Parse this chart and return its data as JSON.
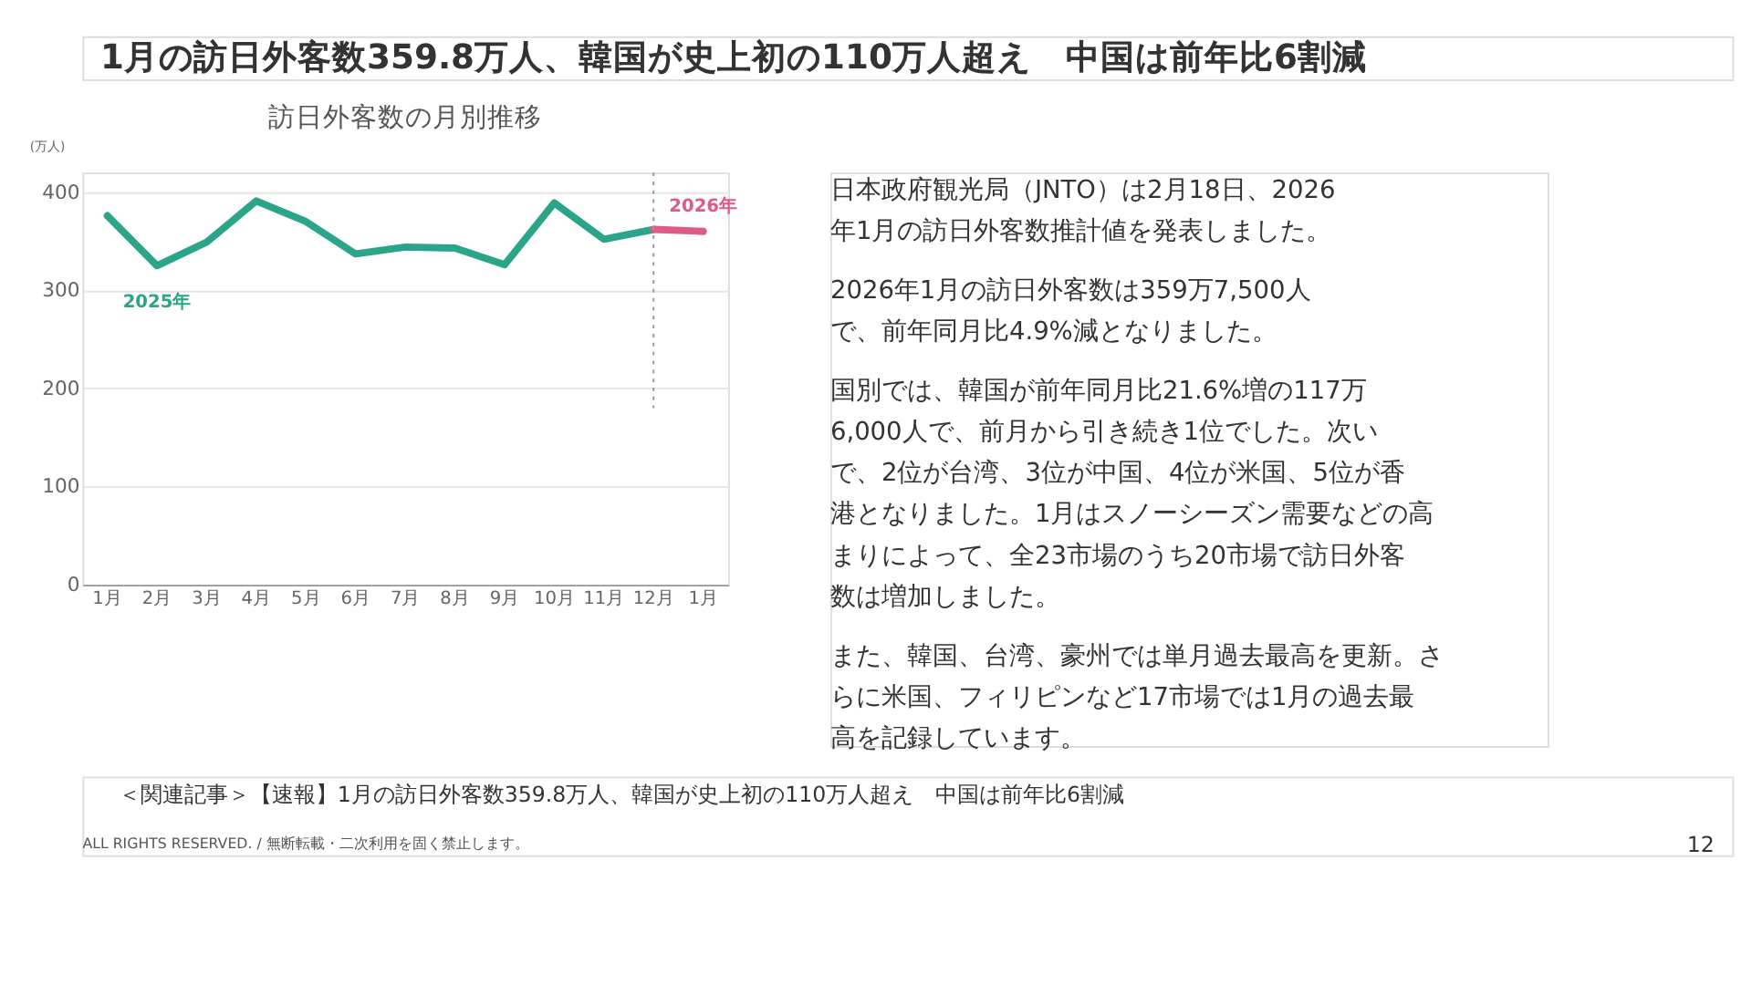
{
  "chart_data": [
    {
      "type": "line",
      "title": "訪日外客数の月別推移",
      "ylabel": "(万人)",
      "categories": [
        "1月",
        "2月",
        "3月",
        "4月",
        "5月",
        "6月",
        "7月",
        "8月",
        "9月",
        "10月",
        "11月",
        "12月",
        "1月"
      ],
      "series": [
        {
          "name": "2025年",
          "color": "#2aa58a",
          "values": [
            376,
            325,
            349,
            391,
            370,
            337,
            344,
            343,
            326,
            389,
            352,
            362,
            null
          ]
        },
        {
          "name": "2026年",
          "color": "#e05a86",
          "values": [
            null,
            null,
            null,
            null,
            null,
            null,
            null,
            null,
            null,
            null,
            null,
            362,
            360
          ]
        }
      ],
      "ylim": [
        0,
        420
      ],
      "yticks": [
        0,
        100,
        200,
        300,
        400
      ],
      "grid": "y",
      "line_style": "solid",
      "ref_lines": [
        {
          "axis": "x",
          "value": "12月",
          "color": "#999999",
          "line_style": "dotted"
        }
      ]
    },
    {
      "type": "other",
      "title": "1月の訪日外客数359.8万人、韓国が史上初の110万人超え　中国は前年比6割減",
      "annotations": [
        "日本政府観光局（JNTO）は2月18日、2026年1月の訪日外客数推計値を発表しました。",
        "2026年1月の訪日外客数は359万7,500人で、前年同月比4.9%減となりました。",
        "国別では、韓国が前年同月比21.6%増の117万6,000人で、前月から引き続き1位でした。次いで、2位が台湾、3位が中国、4位が米国、5位が香港となりました。1月はスノーシーズン需要などの高まりによって、全23市場のうち20市場で訪日外客数は増加しました。",
        "また、韓国、台湾、豪州では単月過去最高を更新。さらに米国、フィリピンなど17市場では1月の過去最高を記録しています。"
      ]
    },
    {
      "type": "other",
      "annotations": [
        "＜関連記事＞【速報】1月の訪日外客数359.8万人、韓国が史上初の110万人超え　中国は前年比6割減",
        "ALL RIGHTS RESERVED. / 無断転載・二次利用を固く禁止します。",
        "12"
      ]
    }
  ]
}
